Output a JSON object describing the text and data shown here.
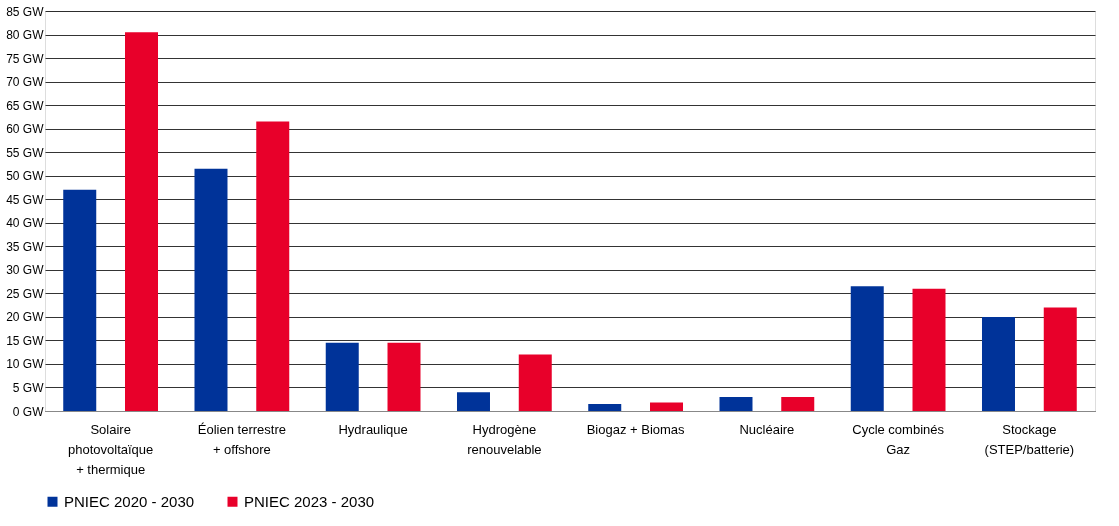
{
  "chart_data": {
    "type": "bar",
    "categories": [
      "Solaire\nphotovoltaïque\n+ thermique",
      "Éolien terrestre\n+ offshore",
      "Hydraulique",
      "Hydrogène\nrenouvelable",
      "Biogaz + Biomas",
      "Nucléaire",
      "Cycle combinés\nGaz",
      "Stockage\n(STEP/batterie)"
    ],
    "series": [
      {
        "name": "PNIEC 2020 - 2030",
        "color": "#003399",
        "values": [
          47,
          51.5,
          14.5,
          4,
          1.5,
          3,
          26.5,
          20
        ]
      },
      {
        "name": "PNIEC 2023 - 2030",
        "color": "#e8002a",
        "values": [
          80.5,
          61.5,
          14.5,
          12,
          1.8,
          3,
          26,
          22
        ]
      }
    ],
    "ylim": [
      0,
      85
    ],
    "yticks": [
      {
        "value": 0,
        "label": "0 GW"
      },
      {
        "value": 5,
        "label": "5 GW"
      },
      {
        "value": 10,
        "label": "10 GW"
      },
      {
        "value": 15,
        "label": "15 GW"
      },
      {
        "value": 20,
        "label": "20 GW"
      },
      {
        "value": 25,
        "label": "25 GW"
      },
      {
        "value": 30,
        "label": "30 GW"
      },
      {
        "value": 35,
        "label": "35 GW"
      },
      {
        "value": 40,
        "label": "40 GW"
      },
      {
        "value": 45,
        "label": "45 GW"
      },
      {
        "value": 50,
        "label": "50 GW"
      },
      {
        "value": 55,
        "label": "55 GW"
      },
      {
        "value": 60,
        "label": "60 GW"
      },
      {
        "value": 65,
        "label": "65 GW"
      },
      {
        "value": 70,
        "label": "70 GW"
      },
      {
        "value": 75,
        "label": "75 GW"
      },
      {
        "value": 80,
        "label": "80 GW"
      },
      {
        "value": 85,
        "label": "85 GW"
      }
    ],
    "grid": "y",
    "legend": "bottom"
  }
}
